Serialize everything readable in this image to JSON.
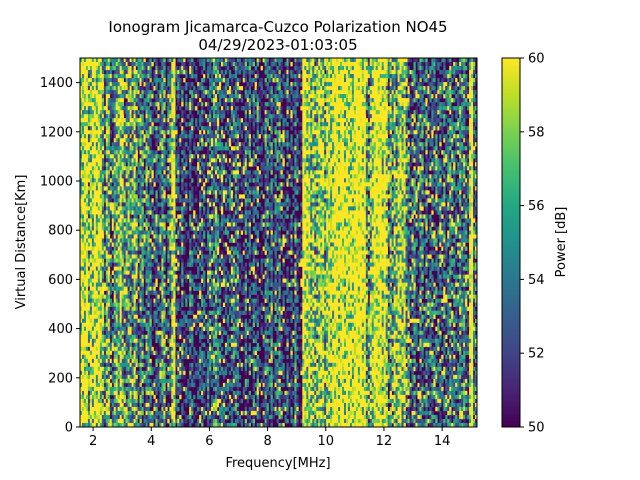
{
  "chart_data": {
    "type": "heatmap",
    "title_line1": "Ionogram Jicamarca-Cuzco Polarization NO45",
    "title_line2": "04/29/2023-01:03:05",
    "xlabel": "Frequency[MHz]",
    "ylabel": "Virtual Distance[Km]",
    "xlim": [
      1.55,
      15.2
    ],
    "ylim": [
      0,
      1500
    ],
    "x_ticks": [
      2,
      4,
      6,
      8,
      10,
      12,
      14
    ],
    "y_ticks": [
      0,
      200,
      400,
      600,
      800,
      1000,
      1200,
      1400
    ],
    "colorbar": {
      "label": "Power [dB]",
      "range": [
        50,
        60
      ],
      "ticks": [
        50,
        52,
        54,
        56,
        58,
        60
      ],
      "colormap": "viridis"
    },
    "description_columns_mhz_level": [
      [
        1.55,
        2.0,
        0.75
      ],
      [
        2.0,
        2.4,
        0.8
      ],
      [
        2.4,
        2.9,
        0.35
      ],
      [
        2.9,
        3.5,
        0.6
      ],
      [
        3.5,
        4.7,
        0.25
      ],
      [
        4.7,
        4.85,
        1.0
      ],
      [
        4.85,
        6.0,
        0.2
      ],
      [
        6.0,
        7.0,
        0.3
      ],
      [
        7.0,
        9.2,
        0.18
      ],
      [
        9.2,
        9.35,
        1.0
      ],
      [
        9.35,
        10.2,
        0.65
      ],
      [
        10.2,
        11.4,
        0.97
      ],
      [
        11.4,
        11.6,
        0.5
      ],
      [
        11.6,
        12.1,
        0.9
      ],
      [
        12.1,
        12.4,
        0.45
      ],
      [
        12.4,
        12.9,
        0.6
      ],
      [
        12.9,
        14.9,
        0.3
      ],
      [
        14.9,
        15.05,
        1.0
      ],
      [
        15.05,
        15.2,
        0.2
      ]
    ]
  }
}
